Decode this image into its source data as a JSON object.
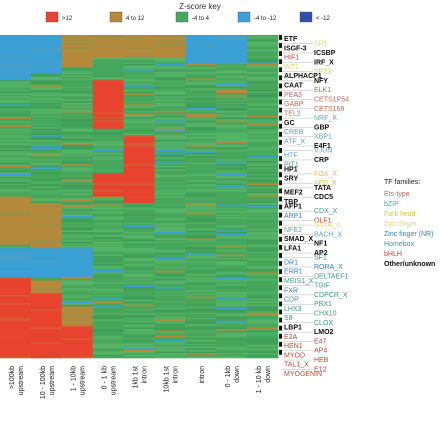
{
  "chart_data": {
    "type": "heatmap",
    "title": "",
    "legend": {
      "title": "Z-score key",
      "bins": [
        {
          "label": ">12",
          "color": "#e8432e"
        },
        {
          "label": "4 to 12",
          "color": "#b5893b"
        },
        {
          "label": "-4 to 4",
          "color": "#45a85e"
        },
        {
          "label": "-4 to -12",
          "color": "#3aa0d6"
        },
        {
          "label": "< -12",
          "color": "#2f4fb0"
        }
      ]
    },
    "columns": [
      [
        ">100kb",
        "upstream"
      ],
      [
        "10 - 100kb",
        "upstream"
      ],
      [
        "1 - 10kb",
        "upstream"
      ],
      [
        "0 - 1 kb",
        "upstream"
      ],
      [
        "1kb 1st",
        "intron"
      ],
      [
        "10kb 1st",
        "intron"
      ],
      [
        "intron"
      ],
      [
        "0 - 1kb",
        "down"
      ],
      [
        "1 - 10 kb",
        "down"
      ]
    ],
    "row_count": 200,
    "blocks": [
      {
        "col": 0,
        "r0": 0,
        "r1": 28,
        "v": -1
      },
      {
        "col": 1,
        "r0": 0,
        "r1": 24,
        "v": -1
      },
      {
        "col": 2,
        "r0": 0,
        "r1": 20,
        "v": 1
      },
      {
        "col": 3,
        "r0": 0,
        "r1": 14,
        "v": 1
      },
      {
        "col": 4,
        "r0": 0,
        "r1": 14,
        "v": 1
      },
      {
        "col": 5,
        "r0": 0,
        "r1": 14,
        "v": 1
      },
      {
        "col": 6,
        "r0": 0,
        "r1": 18,
        "v": -1
      },
      {
        "col": 7,
        "r0": 0,
        "r1": 18,
        "v": -1
      },
      {
        "col": 8,
        "r0": 0,
        "r1": 22,
        "v": 0
      },
      {
        "col": 3,
        "r0": 28,
        "r1": 40,
        "v": 2
      },
      {
        "col": 3,
        "r0": 40,
        "r1": 58,
        "v": 2
      },
      {
        "col": 4,
        "r0": 62,
        "r1": 86,
        "v": 2
      },
      {
        "col": 3,
        "r0": 86,
        "r1": 100,
        "v": 2
      },
      {
        "col": 4,
        "r0": 86,
        "r1": 104,
        "v": 2
      },
      {
        "col": 0,
        "r0": 100,
        "r1": 130,
        "v": 1
      },
      {
        "col": 1,
        "r0": 104,
        "r1": 132,
        "v": 1
      },
      {
        "col": 0,
        "r0": 132,
        "r1": 150,
        "v": -1
      },
      {
        "col": 1,
        "r0": 132,
        "r1": 150,
        "v": -1
      },
      {
        "col": 2,
        "r0": 132,
        "r1": 150,
        "v": -1
      },
      {
        "col": 0,
        "r0": 150,
        "r1": 200,
        "v": 2
      },
      {
        "col": 1,
        "r0": 152,
        "r1": 200,
        "v": 1
      },
      {
        "col": 1,
        "r0": 160,
        "r1": 200,
        "v": 2
      },
      {
        "col": 2,
        "r0": 168,
        "r1": 200,
        "v": 1
      },
      {
        "col": 2,
        "r0": 180,
        "r1": 200,
        "v": 2
      }
    ],
    "row_labels": [
      {
        "label": "ETF",
        "family": "other",
        "side": "L"
      },
      {
        "label": "SP1",
        "family": "zinc-finger",
        "side": "R"
      },
      {
        "label": "ISGF-3",
        "family": "other",
        "side": "L"
      },
      {
        "label": "ICSBP",
        "family": "other",
        "side": "R"
      },
      {
        "label": "HIF1",
        "family": "bhlh",
        "side": "L"
      },
      {
        "label": "IRF_X",
        "family": "other",
        "side": "R"
      },
      {
        "label": "WT1",
        "family": "zinc-finger",
        "side": "L"
      },
      {
        "label": "SPZ1",
        "family": "fork-head",
        "side": "R"
      },
      {
        "label": "ALPHACP1",
        "family": "other",
        "side": "L"
      },
      {
        "label": "NFY",
        "family": "other",
        "side": "R"
      },
      {
        "label": "CAAT",
        "family": "other",
        "side": "L"
      },
      {
        "label": "ELK1",
        "family": "ets",
        "side": "R"
      },
      {
        "label": "PEA3",
        "family": "ets",
        "side": "L"
      },
      {
        "label": "CETS1P54",
        "family": "ets",
        "side": "R"
      },
      {
        "label": "GABP",
        "family": "ets",
        "side": "L"
      },
      {
        "label": "CETS168",
        "family": "ets",
        "side": "R"
      },
      {
        "label": "TEL2",
        "family": "ets",
        "side": "L"
      },
      {
        "label": "NRF_X",
        "family": "bzip",
        "side": "R"
      },
      {
        "label": "GC",
        "family": "other",
        "side": "L"
      },
      {
        "label": "GBP",
        "family": "other",
        "side": "R"
      },
      {
        "label": "CREB",
        "family": "bzip",
        "side": "L"
      },
      {
        "label": "XBP1",
        "family": "bzip",
        "side": "R"
      },
      {
        "label": "ATF_X",
        "family": "bzip",
        "side": "L"
      },
      {
        "label": "E4F1",
        "family": "other",
        "side": "R"
      },
      {
        "label": "VJUN",
        "family": "bzip",
        "side": "R"
      },
      {
        "label": "HTF",
        "family": "bzip",
        "side": "L"
      },
      {
        "label": "CRP",
        "family": "other",
        "side": "R"
      },
      {
        "label": "PIT1",
        "family": "homebox",
        "side": "L"
      },
      {
        "label": "HP1",
        "family": "other",
        "side": "L"
      },
      {
        "label": "FOX_X",
        "family": "fork-head",
        "side": "R"
      },
      {
        "label": "SRY",
        "family": "other",
        "side": "L"
      },
      {
        "label": "XFD_X",
        "family": "fork-head",
        "side": "R"
      },
      {
        "label": "TATA",
        "family": "other",
        "side": "R"
      },
      {
        "label": "MEF2",
        "family": "other",
        "side": "L"
      },
      {
        "label": "CDC5",
        "family": "other",
        "side": "R"
      },
      {
        "label": "TBP",
        "family": "other",
        "side": "L"
      },
      {
        "label": "AFP1",
        "family": "other",
        "side": "L"
      },
      {
        "label": "CDX_X",
        "family": "homebox",
        "side": "R"
      },
      {
        "label": "ARP1",
        "family": "zinc-finger-nr",
        "side": "L"
      },
      {
        "label": "OLF1",
        "family": "bhlh",
        "side": "R"
      },
      {
        "label": "GATA_X",
        "family": "zinc-finger",
        "side": "R"
      },
      {
        "label": "NFE2",
        "family": "bzip",
        "side": "L"
      },
      {
        "label": "BACH_X",
        "family": "bzip",
        "side": "R"
      },
      {
        "label": "SMAD_X",
        "family": "other",
        "side": "L"
      },
      {
        "label": "NF1",
        "family": "other",
        "side": "R"
      },
      {
        "label": "LFA1",
        "family": "other",
        "side": "L"
      },
      {
        "label": "AP2",
        "family": "other",
        "side": "R"
      },
      {
        "label": "SF1",
        "family": "zinc-finger-nr",
        "side": "R"
      },
      {
        "label": "DR1",
        "family": "zinc-finger-nr",
        "side": "L"
      },
      {
        "label": "RORA_X",
        "family": "zinc-finger-nr",
        "side": "R"
      },
      {
        "label": "ERR1",
        "family": "zinc-finger-nr",
        "side": "L"
      },
      {
        "label": "DELTAEF1",
        "family": "homebox",
        "side": "R"
      },
      {
        "label": "MEIS1_X",
        "family": "homebox",
        "side": "L"
      },
      {
        "label": "TGIF",
        "family": "homebox",
        "side": "R"
      },
      {
        "label": "FXR",
        "family": "zinc-finger-nr",
        "side": "L"
      },
      {
        "label": "CDPCR_X",
        "family": "homebox",
        "side": "R"
      },
      {
        "label": "CDP",
        "family": "homebox",
        "side": "L"
      },
      {
        "label": "PBX1",
        "family": "homebox",
        "side": "R"
      },
      {
        "label": "LHX3",
        "family": "homebox",
        "side": "L"
      },
      {
        "label": "CHX10",
        "family": "homebox",
        "side": "R"
      },
      {
        "label": "S8",
        "family": "homebox",
        "side": "L"
      },
      {
        "label": "CLOX",
        "family": "homebox",
        "side": "R"
      },
      {
        "label": "LBP1",
        "family": "other",
        "side": "L"
      },
      {
        "label": "LMO2",
        "family": "other",
        "side": "R"
      },
      {
        "label": "E2A",
        "family": "bhlh",
        "side": "L"
      },
      {
        "label": "E47",
        "family": "bhlh",
        "side": "R"
      },
      {
        "label": "HEN1",
        "family": "bhlh",
        "side": "L"
      },
      {
        "label": "AP4",
        "family": "bhlh",
        "side": "R"
      },
      {
        "label": "MYOD",
        "family": "bhlh",
        "side": "L"
      },
      {
        "label": "HEB",
        "family": "bhlh",
        "side": "R"
      },
      {
        "label": "TAL1_X",
        "family": "bhlh",
        "side": "L"
      },
      {
        "label": "E12",
        "family": "bhlh",
        "side": "R"
      },
      {
        "label": "MYOGENIN",
        "family": "bhlh",
        "side": "L"
      }
    ],
    "tf_families": {
      "title": "TF families:",
      "items": [
        {
          "key": "ets",
          "label": "Ets-type",
          "color": "#c9685e"
        },
        {
          "key": "bzip",
          "label": "bZIP",
          "color": "#56a6b8"
        },
        {
          "key": "fork-head",
          "label": "Fork head",
          "color": "#dcc24a"
        },
        {
          "key": "zinc-finger",
          "label": "Zinc finger",
          "color": "#e8d66a"
        },
        {
          "key": "zinc-finger-nr",
          "label": "Zinc finger (NR)",
          "color": "#2f86c4"
        },
        {
          "key": "homebox",
          "label": "Homebox",
          "color": "#3f9a8a"
        },
        {
          "key": "bhlh",
          "label": "bHLH",
          "color": "#c24a3a"
        },
        {
          "key": "other",
          "label": "Other/unknown",
          "color": "#111111"
        }
      ]
    }
  }
}
